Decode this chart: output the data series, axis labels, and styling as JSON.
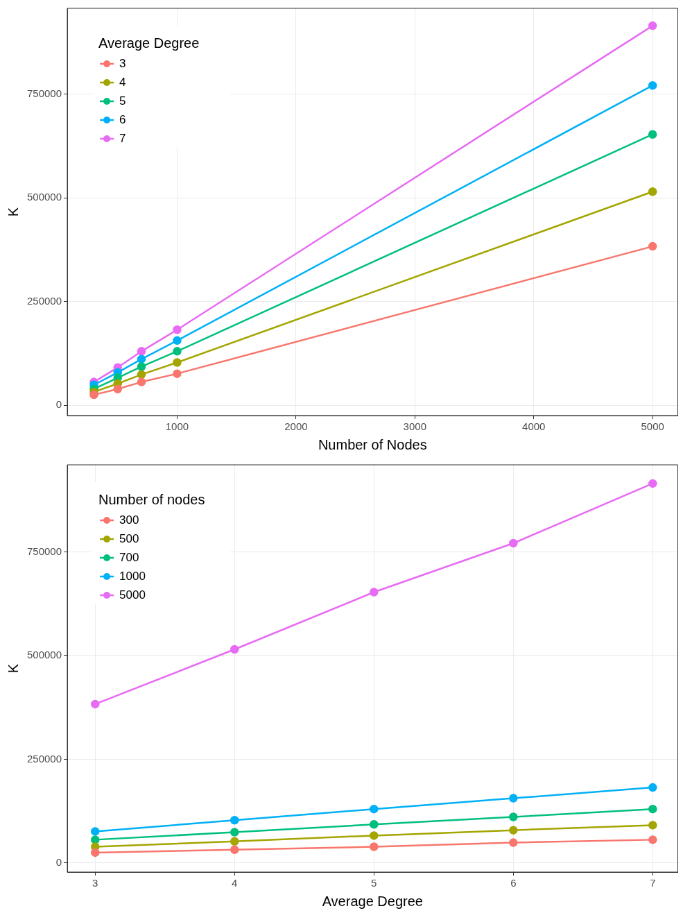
{
  "chart_data": [
    {
      "type": "line",
      "xlabel": "Number of Nodes",
      "ylabel": "K",
      "legend_title": "Average Degree",
      "x": [
        300,
        500,
        700,
        1000,
        5000
      ],
      "xlim": [
        76,
        5212
      ],
      "xticks": [
        1000,
        2000,
        3000,
        4000,
        5000
      ],
      "ylim": [
        -25000,
        957000
      ],
      "yticks": [
        0,
        250000,
        500000,
        750000
      ],
      "grid": true,
      "legend": "top left",
      "marker": "circle",
      "line_style": "solid",
      "series": [
        {
          "name": "3",
          "color": "#f8766d",
          "values": [
            25000,
            39000,
            56000,
            76000,
            383000
          ]
        },
        {
          "name": "4",
          "color": "#a3a500",
          "values": [
            32000,
            52000,
            74000,
            103000,
            515000
          ]
        },
        {
          "name": "5",
          "color": "#00bf7d",
          "values": [
            39000,
            66000,
            93000,
            130000,
            653000
          ]
        },
        {
          "name": "6",
          "color": "#00b0f6",
          "values": [
            49000,
            79000,
            111000,
            156000,
            771000
          ]
        },
        {
          "name": "7",
          "color": "#e76bf3",
          "values": [
            56000,
            91000,
            130000,
            182000,
            915000
          ]
        }
      ]
    },
    {
      "type": "line",
      "xlabel": "Average Degree",
      "ylabel": "K",
      "legend_title": "Number of nodes",
      "x": [
        3,
        4,
        5,
        6,
        7
      ],
      "xlim": [
        2.8,
        7.18
      ],
      "xticks": [
        3,
        4,
        5,
        6,
        7
      ],
      "ylim": [
        -22000,
        960000
      ],
      "yticks": [
        0,
        250000,
        500000,
        750000
      ],
      "grid": true,
      "legend": "top left",
      "marker": "circle",
      "line_style": "solid",
      "series": [
        {
          "name": "300",
          "color": "#f8766d",
          "values": [
            25000,
            32000,
            39000,
            49000,
            56000
          ]
        },
        {
          "name": "500",
          "color": "#a3a500",
          "values": [
            39000,
            52000,
            66000,
            79000,
            91000
          ]
        },
        {
          "name": "700",
          "color": "#00bf7d",
          "values": [
            56000,
            74000,
            93000,
            111000,
            130000
          ]
        },
        {
          "name": "1000",
          "color": "#00b0f6",
          "values": [
            76000,
            103000,
            130000,
            156000,
            182000
          ]
        },
        {
          "name": "5000",
          "color": "#e76bf3",
          "values": [
            383000,
            515000,
            653000,
            771000,
            915000
          ]
        }
      ]
    }
  ]
}
